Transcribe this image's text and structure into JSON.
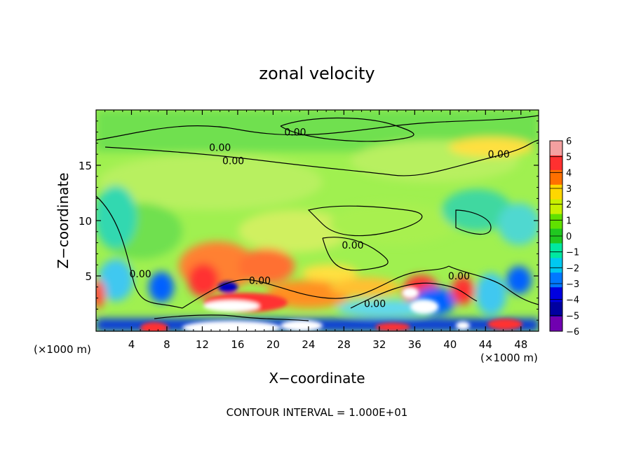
{
  "chart_data": {
    "type": "heatmap",
    "title": "zonal velocity",
    "xlabel": "X−coordinate",
    "ylabel": "Z−coordinate",
    "x_unit_left": "(×1000 m)",
    "x_unit_right": "(×1000 m)",
    "footer": "CONTOUR INTERVAL = 1.000E+01",
    "xlim": [
      0,
      50
    ],
    "ylim": [
      0,
      20
    ],
    "x_ticks": [
      4,
      8,
      12,
      16,
      20,
      24,
      28,
      32,
      36,
      40,
      44,
      48
    ],
    "x_tick_labels": [
      "4",
      "8",
      "12",
      "16",
      "20",
      "24",
      "28",
      "32",
      "36",
      "40",
      "44",
      "48"
    ],
    "y_ticks": [
      5,
      10,
      15
    ],
    "y_tick_labels": [
      "5",
      "10",
      "15"
    ],
    "colorbar": {
      "min": -6,
      "max": 6,
      "labels": [
        "6",
        "5",
        "4",
        "3",
        "2",
        "1",
        "0",
        "−1",
        "−2",
        "−3",
        "−4",
        "−5",
        "−6"
      ],
      "colors": [
        "#f4a0a0",
        "#ff3030",
        "#ff7000",
        "#ffd700",
        "#c8f000",
        "#60e000",
        "#20c820",
        "#00e8a0",
        "#00c8f0",
        "#0078ff",
        "#0000e0",
        "#0000a0",
        "#7000b0"
      ]
    },
    "contour_labels": [
      {
        "text": "0.00",
        "x": 22.5,
        "z": 18.0
      },
      {
        "text": "0.00",
        "x": 14.0,
        "z": 16.6
      },
      {
        "text": "0.00",
        "x": 15.5,
        "z": 15.4
      },
      {
        "text": "0.00",
        "x": 45.5,
        "z": 16.0
      },
      {
        "text": "0.00",
        "x": 29.0,
        "z": 7.8
      },
      {
        "text": "0.00",
        "x": 5.0,
        "z": 5.2
      },
      {
        "text": "0.00",
        "x": 18.5,
        "z": 4.6
      },
      {
        "text": "0.00",
        "x": 41.0,
        "z": 5.0
      },
      {
        "text": "0.00",
        "x": 31.5,
        "z": 2.5
      }
    ]
  }
}
